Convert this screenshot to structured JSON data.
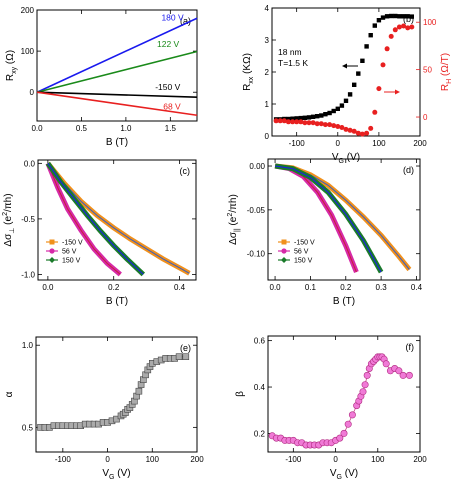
{
  "chart_data": [
    {
      "panel": "(a)",
      "type": "line",
      "xlabel": "B (T)",
      "ylabel": "R_xy (Ω)",
      "xlim": [
        0,
        1.8
      ],
      "ylim": [
        -70,
        200
      ],
      "xticks": [
        "0.0",
        "0.5",
        "1.0",
        "1.5"
      ],
      "xtick_values": [
        0,
        0.5,
        1.0,
        1.5
      ],
      "yticks": [
        "0",
        "100",
        "200"
      ],
      "ytick_values": [
        0,
        100,
        200
      ],
      "series": [
        {
          "name": "180 V",
          "color": "#1a1aee",
          "x": [
            0,
            1.8
          ],
          "y": [
            0,
            180
          ]
        },
        {
          "name": "122 V",
          "color": "#1a8a1a",
          "x": [
            0,
            1.8
          ],
          "y": [
            0,
            99
          ]
        },
        {
          "name": "-150 V",
          "color": "#000000",
          "x": [
            0,
            1.8
          ],
          "y": [
            0,
            -12
          ]
        },
        {
          "name": "68 V",
          "color": "#e82020",
          "x": [
            0,
            1.8
          ],
          "y": [
            0,
            -56
          ]
        }
      ],
      "annotations": [
        {
          "text": "180 V",
          "color": "#1a1aee",
          "x": 1.4,
          "y": 175
        },
        {
          "text": "122 V",
          "color": "#1a8a1a",
          "x": 1.35,
          "y": 110
        },
        {
          "text": "-150 V",
          "color": "#000000",
          "x": 1.33,
          "y": 5
        },
        {
          "text": "68 V",
          "color": "#e82020",
          "x": 1.42,
          "y": -42
        }
      ]
    },
    {
      "panel": "(b)",
      "type": "scatter",
      "xlabel": "V_G (V)",
      "ylabel": "R_xx (KΩ)",
      "y2label": "R_H (Ω/T)",
      "xlim": [
        -160,
        200
      ],
      "ylim": [
        0,
        4
      ],
      "y2lim": [
        -20,
        115
      ],
      "xticks": [
        "-100",
        "0",
        "100",
        "200"
      ],
      "xtick_values": [
        -100,
        0,
        100,
        200
      ],
      "yticks": [
        "0",
        "1",
        "2",
        "3",
        "4"
      ],
      "ytick_values": [
        0,
        1,
        2,
        3,
        4
      ],
      "y2ticks": [
        "0",
        "50",
        "100"
      ],
      "y2tick_values": [
        0,
        50,
        100
      ],
      "annotations": [
        "18 nm",
        "T=1.5 K"
      ],
      "series": [
        {
          "name": "R_xx",
          "axis": "left",
          "color": "#000000",
          "marker": "square",
          "x": [
            -150,
            -140,
            -130,
            -120,
            -110,
            -100,
            -90,
            -80,
            -70,
            -60,
            -50,
            -40,
            -30,
            -20,
            -10,
            0,
            10,
            20,
            30,
            40,
            50,
            60,
            70,
            80,
            90,
            100,
            110,
            120,
            130,
            140,
            150,
            160,
            170,
            180
          ],
          "y": [
            0.52,
            0.52,
            0.53,
            0.53,
            0.54,
            0.55,
            0.56,
            0.57,
            0.58,
            0.6,
            0.62,
            0.64,
            0.68,
            0.72,
            0.78,
            0.85,
            0.95,
            1.1,
            1.3,
            1.6,
            1.95,
            2.35,
            2.8,
            3.15,
            3.45,
            3.62,
            3.7,
            3.74,
            3.75,
            3.75,
            3.74,
            3.74,
            3.74,
            3.73
          ]
        },
        {
          "name": "R_H",
          "axis": "right",
          "color": "#e82020",
          "marker": "circle",
          "x": [
            -150,
            -140,
            -130,
            -120,
            -110,
            -100,
            -90,
            -80,
            -70,
            -60,
            -50,
            -40,
            -30,
            -20,
            -10,
            0,
            10,
            20,
            30,
            40,
            50,
            60,
            70,
            80,
            90,
            100,
            110,
            120,
            130,
            140,
            150,
            160,
            170,
            180
          ],
          "y": [
            -4,
            -4,
            -4,
            -5,
            -5,
            -5,
            -5,
            -6,
            -6,
            -6,
            -7,
            -7,
            -8,
            -8,
            -9,
            -10,
            -11,
            -13,
            -14,
            -15,
            -17,
            -18,
            -17,
            -12,
            5,
            30,
            55,
            72,
            85,
            92,
            95,
            96,
            94,
            95
          ]
        }
      ]
    },
    {
      "panel": "(c)",
      "type": "line",
      "xlabel": "B (T)",
      "ylabel": "Δσ⊥ (e²/πh)",
      "xlim": [
        -0.03,
        0.45
      ],
      "ylim": [
        -1.05,
        0.03
      ],
      "xticks": [
        "0.0",
        "0.2",
        "0.4"
      ],
      "xtick_values": [
        0,
        0.2,
        0.4
      ],
      "yticks": [
        "0.0",
        "-0.5",
        "-1.0"
      ],
      "ytick_values": [
        0,
        -0.5,
        -1.0
      ],
      "series": [
        {
          "name": "-150 V",
          "color": "#f0901c",
          "fit_color": "#3a5fc0",
          "x": [
            0,
            0.05,
            0.1,
            0.15,
            0.2,
            0.25,
            0.3,
            0.35,
            0.4,
            0.43
          ],
          "y": [
            0,
            -0.18,
            -0.34,
            -0.47,
            -0.58,
            -0.68,
            -0.77,
            -0.86,
            -0.94,
            -0.99
          ]
        },
        {
          "name": "56 V",
          "color": "#d62aa8",
          "fit_color": "#c81e3a",
          "x": [
            0,
            0.03,
            0.06,
            0.1,
            0.14,
            0.18,
            0.22
          ],
          "y": [
            0,
            -0.22,
            -0.41,
            -0.6,
            -0.77,
            -0.9,
            -1.0
          ]
        },
        {
          "name": "150 V",
          "color": "#1a7a2a",
          "fit_color": "#1a1aee",
          "x": [
            0,
            0.04,
            0.08,
            0.12,
            0.16,
            0.2,
            0.24,
            0.29
          ],
          "y": [
            0,
            -0.17,
            -0.32,
            -0.47,
            -0.61,
            -0.74,
            -0.86,
            -1.0
          ]
        }
      ]
    },
    {
      "panel": "(d)",
      "type": "line",
      "xlabel": "B (T)",
      "ylabel": "Δσ|| (e²/πh)",
      "xlim": [
        -0.02,
        0.41
      ],
      "ylim": [
        -0.13,
        0.008
      ],
      "xticks": [
        "0.0",
        "0.1",
        "0.2",
        "0.3",
        "0.4"
      ],
      "xtick_values": [
        0,
        0.1,
        0.2,
        0.3,
        0.4
      ],
      "yticks": [
        "0.00",
        "-0.05",
        "-0.10"
      ],
      "ytick_values": [
        0,
        -0.05,
        -0.1
      ],
      "series": [
        {
          "name": "-150 V",
          "color": "#f0901c",
          "fit_color": "#3a5fc0",
          "x": [
            0,
            0.05,
            0.1,
            0.15,
            0.2,
            0.25,
            0.3,
            0.35,
            0.38
          ],
          "y": [
            0,
            -0.002,
            -0.01,
            -0.022,
            -0.039,
            -0.058,
            -0.079,
            -0.103,
            -0.118
          ]
        },
        {
          "name": "56 V",
          "color": "#d62aa8",
          "fit_color": "#c81e3a",
          "x": [
            0,
            0.04,
            0.08,
            0.12,
            0.16,
            0.2,
            0.23
          ],
          "y": [
            0,
            -0.003,
            -0.012,
            -0.03,
            -0.056,
            -0.091,
            -0.121
          ]
        },
        {
          "name": "150 V",
          "color": "#1a7a2a",
          "fit_color": "#1a1aee",
          "x": [
            0,
            0.05,
            0.1,
            0.15,
            0.2,
            0.25,
            0.3
          ],
          "y": [
            0,
            -0.003,
            -0.013,
            -0.03,
            -0.055,
            -0.085,
            -0.121
          ]
        }
      ]
    },
    {
      "panel": "(e)",
      "type": "scatter",
      "xlabel": "V_G (V)",
      "ylabel": "α",
      "xlim": [
        -160,
        200
      ],
      "ylim": [
        0.35,
        1.05
      ],
      "xticks": [
        "-100",
        "0",
        "100",
        "200"
      ],
      "xtick_values": [
        -100,
        0,
        100,
        200
      ],
      "yticks": [
        "0.5",
        "1.0"
      ],
      "ytick_values": [
        0.5,
        1.0
      ],
      "series": [
        {
          "name": "α",
          "color": "#aaaaaa",
          "marker": "square",
          "x": [
            -150,
            -140,
            -130,
            -120,
            -110,
            -100,
            -90,
            -80,
            -70,
            -60,
            -50,
            -40,
            -30,
            -20,
            -10,
            0,
            10,
            20,
            30,
            35,
            40,
            45,
            50,
            55,
            60,
            65,
            70,
            75,
            80,
            85,
            90,
            95,
            100,
            110,
            120,
            130,
            140,
            150,
            160,
            175
          ],
          "y": [
            0.5,
            0.5,
            0.5,
            0.51,
            0.51,
            0.51,
            0.51,
            0.51,
            0.51,
            0.51,
            0.52,
            0.52,
            0.52,
            0.52,
            0.53,
            0.53,
            0.54,
            0.55,
            0.57,
            0.58,
            0.59,
            0.61,
            0.62,
            0.64,
            0.66,
            0.69,
            0.72,
            0.76,
            0.79,
            0.82,
            0.85,
            0.87,
            0.89,
            0.9,
            0.91,
            0.92,
            0.92,
            0.92,
            0.93,
            0.93
          ]
        }
      ]
    },
    {
      "panel": "(f)",
      "type": "scatter",
      "xlabel": "V_G (V)",
      "ylabel": "β",
      "xlim": [
        -160,
        200
      ],
      "ylim": [
        0.12,
        0.62
      ],
      "xticks": [
        "-100",
        "0",
        "100",
        "200"
      ],
      "xtick_values": [
        -100,
        0,
        100,
        200
      ],
      "yticks": [
        "0.2",
        "0.4",
        "0.6"
      ],
      "ytick_values": [
        0.2,
        0.4,
        0.6
      ],
      "series": [
        {
          "name": "β",
          "color": "#f07ad6",
          "marker": "circle",
          "x": [
            -150,
            -140,
            -130,
            -120,
            -110,
            -100,
            -90,
            -80,
            -70,
            -60,
            -50,
            -40,
            -30,
            -20,
            -10,
            0,
            10,
            20,
            30,
            40,
            50,
            55,
            60,
            65,
            70,
            75,
            80,
            85,
            90,
            95,
            100,
            105,
            110,
            115,
            120,
            130,
            140,
            150,
            160,
            175
          ],
          "y": [
            0.19,
            0.18,
            0.18,
            0.17,
            0.17,
            0.17,
            0.16,
            0.16,
            0.15,
            0.15,
            0.15,
            0.15,
            0.16,
            0.16,
            0.16,
            0.17,
            0.18,
            0.2,
            0.24,
            0.28,
            0.32,
            0.34,
            0.36,
            0.38,
            0.41,
            0.45,
            0.48,
            0.5,
            0.51,
            0.52,
            0.53,
            0.53,
            0.53,
            0.52,
            0.5,
            0.47,
            0.48,
            0.47,
            0.45,
            0.45
          ]
        }
      ]
    }
  ],
  "legends": {
    "c": [
      "-150 V",
      "56 V",
      "150 V"
    ],
    "d": [
      "-150 V",
      "56 V",
      "150 V"
    ]
  }
}
